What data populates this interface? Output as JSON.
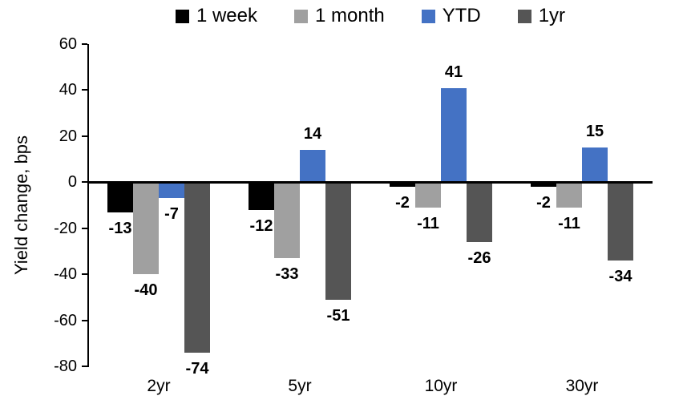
{
  "chart_data": {
    "type": "bar",
    "title": "",
    "ylabel": "Yield change, bps",
    "xlabel": "",
    "categories": [
      "2yr",
      "5yr",
      "10yr",
      "30yr"
    ],
    "series": [
      {
        "name": "1 week",
        "color": "#000000",
        "values": [
          -13,
          -12,
          -2,
          -2
        ]
      },
      {
        "name": "1 month",
        "color": "#A0A0A0",
        "values": [
          -40,
          -33,
          -11,
          -11
        ]
      },
      {
        "name": "YTD",
        "color": "#4472C4",
        "values": [
          -7,
          14,
          41,
          15
        ]
      },
      {
        "name": "1yr",
        "color": "#555555",
        "values": [
          -74,
          -51,
          -26,
          -34
        ]
      }
    ],
    "ylim": [
      -80,
      60
    ],
    "yticks": [
      60,
      40,
      20,
      0,
      -20,
      -40,
      -60,
      -80
    ],
    "legend_position": "top",
    "grid": false,
    "data_labels": true,
    "axis_color": "#000000",
    "background_color": "#FFFFFF"
  }
}
